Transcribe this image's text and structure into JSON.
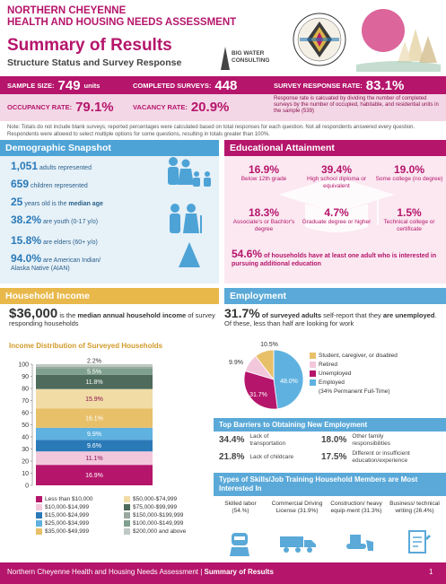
{
  "header": {
    "org_line1": "NORTHERN CHEYENNE",
    "org_line2": "HEALTH AND HOUSING NEEDS ASSESSMENT",
    "title": "Summary of Results",
    "subtitle": "Structure Status and Survey Response",
    "consultant": "BIG WATER CONSULTING"
  },
  "stats": {
    "sample_label": "SAMPLE SIZE:",
    "sample_value": "749",
    "sample_unit": "units",
    "completed_label": "COMPLETED SURVEYS:",
    "completed_value": "448",
    "response_label": "SURVEY RESPONSE RATE:",
    "response_value": "83.1%",
    "occupancy_label": "OCCUPANCY RATE:",
    "occupancy_value": "79.1%",
    "vacancy_label": "VACANCY RATE:",
    "vacancy_value": "20.9%",
    "response_note": "Response rate is calcuated by dividing the number of completed surveys by the number of occupied, habitable, and residential units in the sample (539)"
  },
  "note": "Note: Totals do not include blank surveys; reported percentages were calculated based on total responses for each question. Not all respondents answered every question. Respondents were allowed to select multiple options for some questions, resulting in totals greater than 100%.",
  "demographics": {
    "header": "Demographic Snapshot",
    "adults_num": "1,051",
    "adults_lbl": "adults represented",
    "children_num": "659",
    "children_lbl": "children represented",
    "age_num": "25",
    "age_lbl_a": "years old is the",
    "age_lbl_b": "median age",
    "youth_num": "38.2%",
    "youth_lbl": "are youth (0-17 y/o)",
    "elders_num": "15.8%",
    "elders_lbl": "are elders (60+ y/o)",
    "aian_num": "94.0%",
    "aian_lbl_a": "are American Indian/",
    "aian_lbl_b": "Alaska Native (AIAN)"
  },
  "education": {
    "header": "Educational Attainment",
    "items": [
      {
        "pct": "16.9%",
        "label": "Below 12th grade"
      },
      {
        "pct": "39.4%",
        "label": "High school diploma or equivalent"
      },
      {
        "pct": "19.0%",
        "label": "Some college (no degree)"
      },
      {
        "pct": "18.3%",
        "label": "Associate's or Bachlor's degree"
      },
      {
        "pct": "4.7%",
        "label": "Graduate degree or higher"
      },
      {
        "pct": "1.5%",
        "label": "Technical college or certificate"
      }
    ],
    "footer_pct": "54.6%",
    "footer_text": "of households have at least one adult who is interested in pursuing additional education"
  },
  "income": {
    "header": "Household Income",
    "median": "$36,000",
    "median_text_a": "is the",
    "median_text_b": "median annual household income",
    "median_text_c": "of survey responding households",
    "chart_title": "Income Distribution of Surveyed Households"
  },
  "chart_data": {
    "type": "bar",
    "title": "Income Distribution of Surveyed Households",
    "ylim": [
      0,
      100
    ],
    "yticks": [
      "0",
      "10",
      "20",
      "30",
      "40",
      "50",
      "60",
      "70",
      "80",
      "90",
      "100"
    ],
    "series": [
      {
        "name": "Less than $10,000",
        "value": 16.9,
        "label": "16.9%",
        "color": "#b5156b"
      },
      {
        "name": "$10,000-$14,999",
        "value": 11.1,
        "label": "11.1%",
        "color": "#f2c7dc"
      },
      {
        "name": "$15,000-$24,999",
        "value": 9.6,
        "label": "9.6%",
        "color": "#2a7ab8"
      },
      {
        "name": "$25,000-$34,999",
        "value": 9.9,
        "label": "9.9%",
        "color": "#5fb2e0"
      },
      {
        "name": "$35,000-$49,999",
        "value": 16.1,
        "label": "16.1%",
        "color": "#e8c06a"
      },
      {
        "name": "$50,000-$74,999",
        "value": 15.9,
        "label": "15.9%",
        "color": "#f1dca6"
      },
      {
        "name": "$75,000-$99,999",
        "value": 11.8,
        "label": "11.8%",
        "color": "#4e6b5c"
      },
      {
        "name": "$100,000-$149,999",
        "value": 5.5,
        "label": "5.5%",
        "color": "#7fa08e"
      },
      {
        "name": "$150,000-$199,999",
        "value": 1.0,
        "label": "",
        "color": "#9aa8a0"
      },
      {
        "name": "$200,000 and above",
        "value": 2.2,
        "label": "2.2%",
        "color": "#bfc9c3"
      }
    ]
  },
  "legend_left": [
    "Less than $10,000",
    "$10,000-$14,999",
    "$15,000-$24,999",
    "$25,000-$34,999",
    "$35,000-$49,999"
  ],
  "legend_right": [
    "$50,000-$74,999",
    "$75,000-$99,999",
    "$150,000-$199,999",
    "$100,000-$149,999",
    "$200,000 and above"
  ],
  "employment": {
    "header": "Employment",
    "pct": "31.7%",
    "text_a": "of surveyed adults",
    "text_b": "self-report that they",
    "text_c": "are unemployed",
    "text_d": ". Of these, less than half are looking for work",
    "pie": [
      {
        "label": "Employed",
        "value": 48.0,
        "color": "#5fb2e0",
        "text": "48.0%"
      },
      {
        "label": "Unemployed",
        "value": 31.7,
        "color": "#b5156b",
        "text": "31.7%"
      },
      {
        "label": "Retired",
        "value": 9.9,
        "color": "#f2c7dc",
        "text": "9.9%"
      },
      {
        "label": "Student, caregiver, or disabled",
        "value": 10.5,
        "color": "#e8c06a",
        "text": "10.5%"
      }
    ],
    "pie_legend": [
      {
        "label": "Student, caregiver, or disabled",
        "color": "#e8c06a"
      },
      {
        "label": "Retired",
        "color": "#f2c7dc"
      },
      {
        "label": "Unemployed",
        "color": "#b5156b"
      },
      {
        "label": "Employed",
        "color": "#5fb2e0"
      }
    ],
    "employed_note": "(34% Permanent Full-Time)"
  },
  "barriers": {
    "header": "Top Barriers to Obtaining New Employment",
    "items": [
      {
        "pct": "34.4%",
        "label": "Lack of transportation"
      },
      {
        "pct": "18.0%",
        "label": "Other family responsibilities"
      },
      {
        "pct": "21.8%",
        "label": "Lack of childcare"
      },
      {
        "pct": "17.5%",
        "label": "Different or insufficient education/experience"
      }
    ]
  },
  "skills": {
    "header": "Types of Skills/Job Training Household Members are Most Interested In",
    "items": [
      {
        "label": "Skilled labor (54.%)"
      },
      {
        "label": "Commercial Driving License (31.9%)"
      },
      {
        "label": "Construction/ heavy equip-ment (31.3%)"
      },
      {
        "label": "Business/ technical writing (26.4%)"
      }
    ]
  },
  "footer": {
    "text": "Northern Cheyenne Health and Housing Needs Assessment | ",
    "bold": "Summary of Results",
    "page": "1"
  }
}
